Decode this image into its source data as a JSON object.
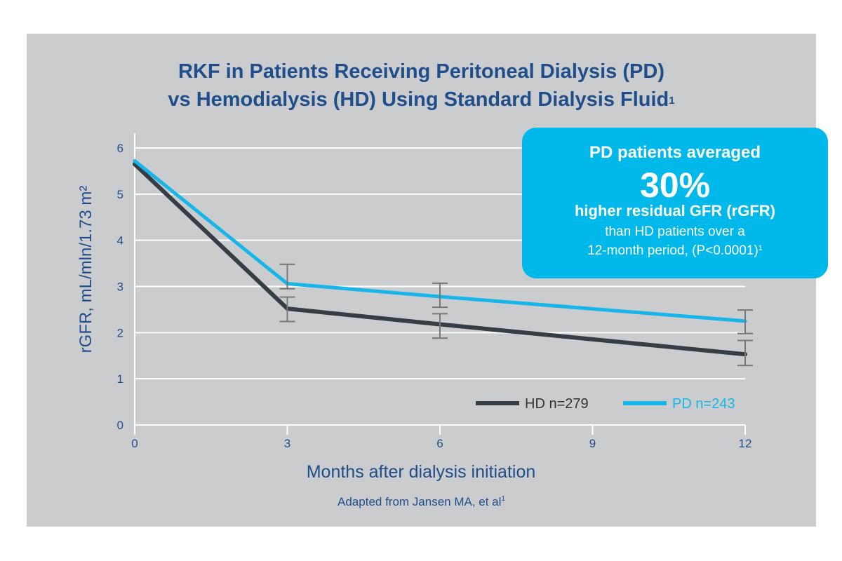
{
  "title": {
    "line1": "RKF in Patients Receiving Peritoneal Dialysis (PD)",
    "line2": "vs Hemodialysis (HD) Using Standard Dialysis Fluid",
    "line2_sup": "1"
  },
  "callout": {
    "line1": "PD patients averaged",
    "line2": "30%",
    "line3": "higher residual GFR (rGFR)",
    "line4": "than HD patients over a",
    "line5": "12-month period, (P<0.0001)",
    "line5_sup": "1"
  },
  "source": {
    "text": "Adapted from Jansen MA, et al",
    "sup": "1"
  },
  "colors": {
    "hd": "#363d45",
    "pd": "#17b6e9",
    "text": "#1f4e8c",
    "errorbar": "#777777",
    "panel": "#cbcccd"
  },
  "chart_data": {
    "type": "line",
    "title": "RKF in Patients Receiving Peritoneal Dialysis (PD) vs Hemodialysis (HD) Using Standard Dialysis Fluid",
    "xlabel": "Months after dialysis initiation",
    "ylabel": "rGFR, mL/mln/1.73 m²",
    "xlim": [
      0,
      12
    ],
    "ylim": [
      0,
      6
    ],
    "xticks": [
      "0",
      "3",
      "6",
      "9",
      "12"
    ],
    "yticks": [
      "0",
      "1",
      "2",
      "3",
      "4",
      "5",
      "6"
    ],
    "legend_position": "bottom-right",
    "series": [
      {
        "name": "HD n=279",
        "color": "#363d45",
        "x": [
          0,
          3,
          6,
          12
        ],
        "y": [
          5.65,
          2.52,
          2.18,
          1.53
        ],
        "error": [
          null,
          [
            2.24,
            2.77
          ],
          [
            1.88,
            2.41
          ],
          [
            1.29,
            1.83
          ]
        ]
      },
      {
        "name": "PD n=243",
        "color": "#17b6e9",
        "x": [
          0,
          3,
          6,
          12
        ],
        "y": [
          5.72,
          3.06,
          2.78,
          2.25
        ],
        "error": [
          null,
          [
            2.95,
            3.48
          ],
          [
            2.55,
            3.07
          ],
          [
            1.98,
            2.49
          ]
        ]
      }
    ]
  }
}
